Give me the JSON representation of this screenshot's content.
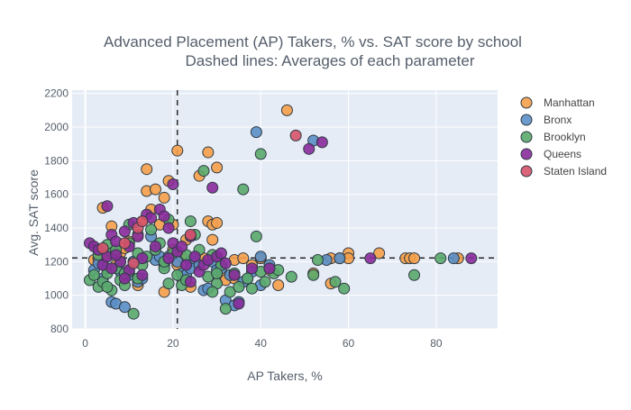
{
  "chart_data": {
    "type": "scatter",
    "title": "Advanced Placement (AP) Takers, % vs. SAT score by school",
    "subtitle": "Dashed lines: Averages of each parameter",
    "xlabel": "AP Takers, %",
    "ylabel": "Avg. SAT score",
    "xlim": [
      -3,
      94
    ],
    "ylim": [
      800,
      2220
    ],
    "x_ticks": [
      0,
      20,
      40,
      60,
      80
    ],
    "y_ticks": [
      800,
      1000,
      1200,
      1400,
      1600,
      1800,
      2000,
      2200
    ],
    "grid": true,
    "legend_position": "right",
    "reference_lines": {
      "x_mean": 21,
      "y_mean": 1222
    },
    "plot_background": "#e5ecf6",
    "series": [
      {
        "name": "Manhattan",
        "color": "#f5a04a",
        "points": [
          [
            2,
            1210
          ],
          [
            3,
            1220
          ],
          [
            4,
            1520
          ],
          [
            5,
            1240
          ],
          [
            6,
            1410
          ],
          [
            7,
            1180
          ],
          [
            8,
            1250
          ],
          [
            9,
            1280
          ],
          [
            10,
            1320
          ],
          [
            11,
            1200
          ],
          [
            12,
            1060
          ],
          [
            12,
            1360
          ],
          [
            13,
            1440
          ],
          [
            14,
            1620
          ],
          [
            14,
            1750
          ],
          [
            15,
            1510
          ],
          [
            16,
            1630
          ],
          [
            17,
            1420
          ],
          [
            18,
            1580
          ],
          [
            18,
            1020
          ],
          [
            19,
            1680
          ],
          [
            20,
            1420
          ],
          [
            20,
            1270
          ],
          [
            21,
            1860
          ],
          [
            21,
            1180
          ],
          [
            22,
            1230
          ],
          [
            23,
            1330
          ],
          [
            24,
            1050
          ],
          [
            25,
            1200
          ],
          [
            26,
            1710
          ],
          [
            27,
            1220
          ],
          [
            28,
            1850
          ],
          [
            28,
            1440
          ],
          [
            29,
            1420
          ],
          [
            29,
            1330
          ],
          [
            30,
            1430
          ],
          [
            30,
            1760
          ],
          [
            31,
            1130
          ],
          [
            32,
            1090
          ],
          [
            34,
            1210
          ],
          [
            36,
            1220
          ],
          [
            38,
            1180
          ],
          [
            40,
            1220
          ],
          [
            42,
            1150
          ],
          [
            44,
            1060
          ],
          [
            46,
            2100
          ],
          [
            52,
            1130
          ],
          [
            56,
            1070
          ],
          [
            58,
            1220
          ],
          [
            60,
            1250
          ],
          [
            67,
            1250
          ],
          [
            73,
            1220
          ],
          [
            74,
            1220
          ],
          [
            75,
            1220
          ],
          [
            85,
            1220
          ],
          [
            56,
            1220
          ],
          [
            40,
            1220
          ],
          [
            60,
            1220
          ],
          [
            34,
            1100
          ]
        ]
      },
      {
        "name": "Bronx",
        "color": "#5b8fc7",
        "points": [
          [
            2,
            1150
          ],
          [
            3,
            1190
          ],
          [
            4,
            1100
          ],
          [
            5,
            1160
          ],
          [
            6,
            960
          ],
          [
            7,
            950
          ],
          [
            8,
            1140
          ],
          [
            9,
            930
          ],
          [
            10,
            1120
          ],
          [
            11,
            1200
          ],
          [
            12,
            1080
          ],
          [
            13,
            1100
          ],
          [
            15,
            1350
          ],
          [
            16,
            1210
          ],
          [
            17,
            1230
          ],
          [
            18,
            1180
          ],
          [
            19,
            1230
          ],
          [
            21,
            1200
          ],
          [
            22,
            1130
          ],
          [
            23,
            1120
          ],
          [
            24,
            1200
          ],
          [
            25,
            1230
          ],
          [
            27,
            1030
          ],
          [
            28,
            1040
          ],
          [
            29,
            1200
          ],
          [
            30,
            1150
          ],
          [
            31,
            1160
          ],
          [
            32,
            970
          ],
          [
            33,
            1120
          ],
          [
            34,
            940
          ],
          [
            35,
            960
          ],
          [
            36,
            1080
          ],
          [
            37,
            1100
          ],
          [
            38,
            1140
          ],
          [
            39,
            1970
          ],
          [
            40,
            1230
          ],
          [
            40,
            1060
          ],
          [
            42,
            1180
          ],
          [
            52,
            1920
          ],
          [
            55,
            1210
          ],
          [
            58,
            1220
          ],
          [
            84,
            1220
          ],
          [
            24,
            1160
          ],
          [
            26,
            1180
          ]
        ]
      },
      {
        "name": "Brooklyn",
        "color": "#5aaa6c",
        "points": [
          [
            1,
            1090
          ],
          [
            2,
            1120
          ],
          [
            3,
            1050
          ],
          [
            3,
            1240
          ],
          [
            4,
            1080
          ],
          [
            5,
            1130
          ],
          [
            5,
            1300
          ],
          [
            6,
            1030
          ],
          [
            6,
            1250
          ],
          [
            7,
            1160
          ],
          [
            8,
            1090
          ],
          [
            8,
            1200
          ],
          [
            9,
            1060
          ],
          [
            10,
            1140
          ],
          [
            10,
            1310
          ],
          [
            11,
            890
          ],
          [
            12,
            1100
          ],
          [
            12,
            1250
          ],
          [
            13,
            1180
          ],
          [
            14,
            1230
          ],
          [
            15,
            1390
          ],
          [
            16,
            1270
          ],
          [
            17,
            1310
          ],
          [
            18,
            1160
          ],
          [
            19,
            1450
          ],
          [
            19,
            1070
          ],
          [
            20,
            1250
          ],
          [
            21,
            1120
          ],
          [
            22,
            1060
          ],
          [
            23,
            1090
          ],
          [
            24,
            1440
          ],
          [
            25,
            1360
          ],
          [
            26,
            1270
          ],
          [
            27,
            1740
          ],
          [
            28,
            1110
          ],
          [
            29,
            1240
          ],
          [
            30,
            1070
          ],
          [
            31,
            1180
          ],
          [
            32,
            920
          ],
          [
            33,
            1020
          ],
          [
            34,
            1130
          ],
          [
            35,
            1050
          ],
          [
            36,
            1630
          ],
          [
            37,
            1100
          ],
          [
            38,
            1040
          ],
          [
            39,
            1350
          ],
          [
            40,
            1840
          ],
          [
            40,
            1140
          ],
          [
            41,
            1080
          ],
          [
            42,
            1160
          ],
          [
            43,
            1130
          ],
          [
            44,
            1150
          ],
          [
            47,
            1110
          ],
          [
            52,
            1120
          ],
          [
            53,
            1210
          ],
          [
            57,
            1080
          ],
          [
            59,
            1040
          ],
          [
            75,
            1120
          ],
          [
            81,
            1220
          ],
          [
            30,
            1130
          ],
          [
            29,
            1020
          ],
          [
            23,
            1240
          ],
          [
            5,
            1050
          ],
          [
            7,
            1270
          ],
          [
            9,
            1130
          ],
          [
            10,
            1420
          ],
          [
            18,
            1200
          ]
        ]
      },
      {
        "name": "Queens",
        "color": "#8a2b9b",
        "points": [
          [
            1,
            1310
          ],
          [
            2,
            1290
          ],
          [
            3,
            1270
          ],
          [
            4,
            1180
          ],
          [
            5,
            1530
          ],
          [
            5,
            1230
          ],
          [
            6,
            1360
          ],
          [
            6,
            1160
          ],
          [
            7,
            1320
          ],
          [
            8,
            1200
          ],
          [
            9,
            1380
          ],
          [
            10,
            1290
          ],
          [
            10,
            1150
          ],
          [
            11,
            1430
          ],
          [
            12,
            1350
          ],
          [
            13,
            1120
          ],
          [
            13,
            1220
          ],
          [
            14,
            1480
          ],
          [
            15,
            1460
          ],
          [
            16,
            1290
          ],
          [
            17,
            1510
          ],
          [
            18,
            1470
          ],
          [
            19,
            1400
          ],
          [
            20,
            1660
          ],
          [
            20,
            1310
          ],
          [
            21,
            1260
          ],
          [
            22,
            1290
          ],
          [
            23,
            1180
          ],
          [
            24,
            1350
          ],
          [
            25,
            1230
          ],
          [
            26,
            1140
          ],
          [
            27,
            1180
          ],
          [
            28,
            1210
          ],
          [
            29,
            1640
          ],
          [
            30,
            1230
          ],
          [
            31,
            1250
          ],
          [
            32,
            1190
          ],
          [
            34,
            1120
          ],
          [
            35,
            950
          ],
          [
            38,
            1160
          ],
          [
            42,
            1160
          ],
          [
            51,
            1870
          ],
          [
            54,
            1910
          ],
          [
            65,
            1220
          ],
          [
            88,
            1220
          ],
          [
            7,
            1240
          ],
          [
            9,
            1100
          ],
          [
            19,
            1220
          ],
          [
            24,
            1080
          ]
        ]
      },
      {
        "name": "Staten Island",
        "color": "#d6536a",
        "points": [
          [
            4,
            1280
          ],
          [
            9,
            1310
          ],
          [
            11,
            1190
          ],
          [
            12,
            1400
          ],
          [
            24,
            1360
          ],
          [
            48,
            1950
          ],
          [
            13,
            1440
          ]
        ]
      }
    ]
  }
}
